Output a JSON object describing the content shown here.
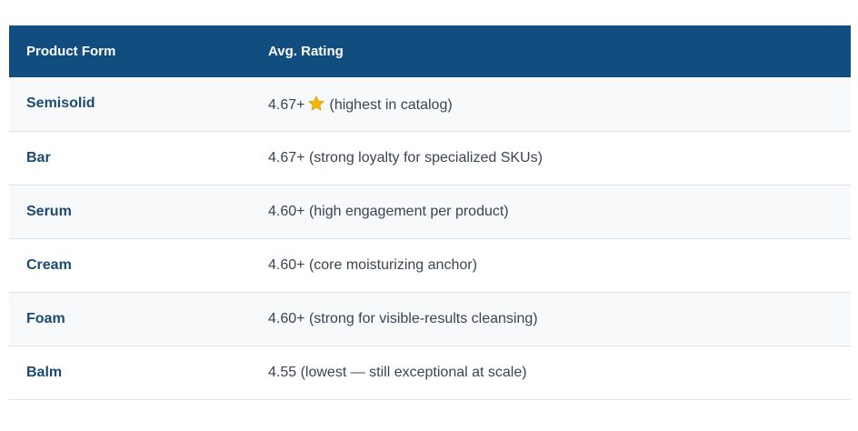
{
  "table": {
    "headers": {
      "form": "Product Form",
      "rating": "Avg. Rating"
    },
    "rows": [
      {
        "form": "Semisolid",
        "rating": "4.67+",
        "note": "(highest in catalog)",
        "icon": "star-icon"
      },
      {
        "form": "Bar",
        "rating": "4.67+",
        "note": "(strong loyalty for specialized SKUs)"
      },
      {
        "form": "Serum",
        "rating": "4.60+",
        "note": "(high engagement per product)"
      },
      {
        "form": "Cream",
        "rating": "4.60+",
        "note": "(core moisturizing anchor)"
      },
      {
        "form": "Foam",
        "rating": "4.60+",
        "note": "(strong for visible-results cleansing)"
      },
      {
        "form": "Balm",
        "rating": "4.55",
        "note": "(lowest — still exceptional at scale)"
      }
    ]
  },
  "colors": {
    "header_bg": "#124d80",
    "header_text": "#ffffff",
    "form_text": "#1b4a72",
    "star": "#f2b705"
  }
}
